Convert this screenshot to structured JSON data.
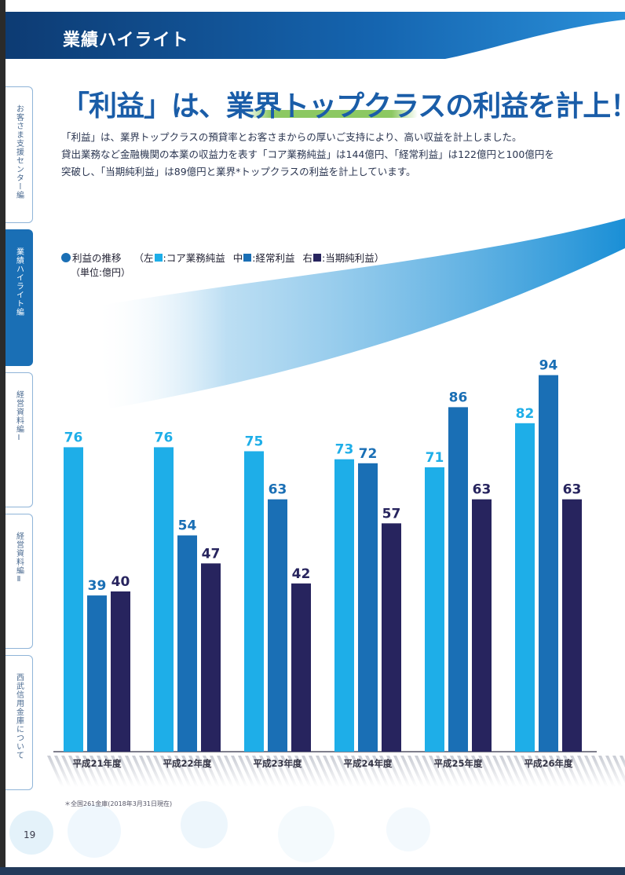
{
  "header": {
    "title": "業績ハイライト"
  },
  "side_tabs": [
    {
      "label": "お客さま支援センター編"
    },
    {
      "label": "業績ハイライト編"
    },
    {
      "label": "経営資料編Ⅰ"
    },
    {
      "label": "経営資料編Ⅱ"
    },
    {
      "label": "西武信用金庫について"
    }
  ],
  "headline": {
    "text": "「利益」は、業界トップクラスの利益を計上！"
  },
  "intro": {
    "lines": [
      "「利益」は、業界トップクラスの預貸率とお客さまからの厚いご支持により、高い収益を計上しました。",
      "貸出業務など金融機関の本業の収益力を表す「コア業務純益」は144億円、「経常利益」は122億円と100億円を",
      "突破し、「当期純利益」は89億円と業界*トップクラスの利益を計上しています。"
    ]
  },
  "legend": {
    "title": "利益の推移",
    "left_prefix": "（左",
    "left_label": ":コア業務純益",
    "mid_prefix": "中",
    "mid_label": ":経常利益",
    "right_prefix": "右",
    "right_label": ":当期純利益）",
    "unit": "（単位:億円）"
  },
  "colors": {
    "core": "#1eaee8",
    "ordinary": "#1a6fb5",
    "net": "#27245e",
    "accent": "#1a5da8"
  },
  "chart_data": {
    "type": "bar",
    "title": "利益の推移",
    "ylabel": "億円",
    "ylim": [
      0,
      100
    ],
    "categories": [
      "平成21年度",
      "平成22年度",
      "平成23年度",
      "平成24年度",
      "平成25年度",
      "平成26年度"
    ],
    "series": [
      {
        "name": "コア業務純益",
        "values": [
          76,
          76,
          75,
          73,
          71,
          82
        ]
      },
      {
        "name": "経常利益",
        "values": [
          39,
          54,
          63,
          72,
          86,
          94
        ]
      },
      {
        "name": "当期純利益",
        "values": [
          40,
          47,
          42,
          57,
          63,
          63
        ]
      }
    ]
  },
  "footnote": "＊全国261金庫(2018年3月31日現在)",
  "page_number": "19"
}
